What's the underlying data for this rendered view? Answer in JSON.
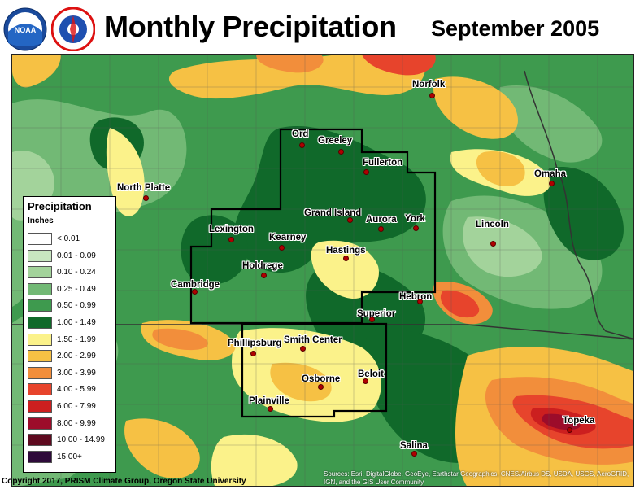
{
  "header": {
    "title": "Monthly Precipitation",
    "period": "September 2005",
    "logos": [
      {
        "name": "noaa-logo",
        "text": "NOAA"
      },
      {
        "name": "nws-logo",
        "text": "NATIONAL WEATHER SERVICE"
      }
    ]
  },
  "legend": {
    "title": "Precipitation",
    "units": "Inches",
    "items": [
      {
        "label": "< 0.01",
        "color": "#ffffff"
      },
      {
        "label": "0.01 - 0.09",
        "color": "#c8e6c0"
      },
      {
        "label": "0.10 - 0.24",
        "color": "#a3d39b"
      },
      {
        "label": "0.25 - 0.49",
        "color": "#72b975"
      },
      {
        "label": "0.50 - 0.99",
        "color": "#3e9a4e"
      },
      {
        "label": "1.00 - 1.49",
        "color": "#10692a"
      },
      {
        "label": "1.50 - 1.99",
        "color": "#fbf28a"
      },
      {
        "label": "2.00 - 2.99",
        "color": "#f6c144"
      },
      {
        "label": "3.00 - 3.99",
        "color": "#f28e3b"
      },
      {
        "label": "4.00 - 5.99",
        "color": "#e7442c"
      },
      {
        "label": "6.00 - 7.99",
        "color": "#cc1f1f"
      },
      {
        "label": "8.00 - 9.99",
        "color": "#9c0c2a"
      },
      {
        "label": "10.00 - 14.99",
        "color": "#5e0a1f"
      },
      {
        "label": "15.00+",
        "color": "#2e0a3a"
      }
    ]
  },
  "cities": [
    {
      "name": "Norfolk"
    },
    {
      "name": "Ord"
    },
    {
      "name": "Greeley"
    },
    {
      "name": "Fullerton"
    },
    {
      "name": "Omaha"
    },
    {
      "name": "North Platte"
    },
    {
      "name": "Grand Island"
    },
    {
      "name": "Aurora"
    },
    {
      "name": "York"
    },
    {
      "name": "Lincoln"
    },
    {
      "name": "Lexington"
    },
    {
      "name": "Kearney"
    },
    {
      "name": "Hastings"
    },
    {
      "name": "Holdrege"
    },
    {
      "name": "Cambridge"
    },
    {
      "name": "Hebron"
    },
    {
      "name": "Superior"
    },
    {
      "name": "Phillipsburg"
    },
    {
      "name": "Smith Center"
    },
    {
      "name": "Osborne"
    },
    {
      "name": "Beloit"
    },
    {
      "name": "Plainville"
    },
    {
      "name": "Salina"
    },
    {
      "name": "Topeka"
    }
  ],
  "footer": {
    "copyright": "Copyright 2017, PRISM Climate Group, Oregon State University",
    "attribution_line1": "Sources: Esri, DigitalGlobe, GeoEye, Earthstar Geographics, CNES/Airbus DS, USDA, USGS, AeroGRID,",
    "attribution_line2": "IGN, and the GIS User Community"
  }
}
